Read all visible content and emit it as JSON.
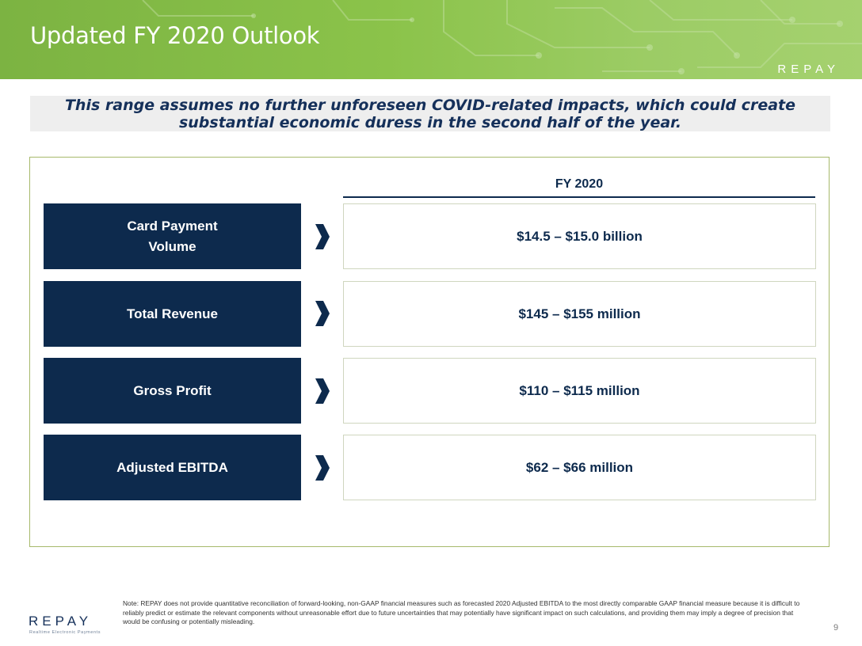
{
  "slide": {
    "title": "Updated FY 2020 Outlook",
    "brand": "REPAY",
    "assumption": "This range assumes no further unforeseen COVID-related impacts, which could create substantial economic duress in the second half of the year."
  },
  "outlook": {
    "column_header": "FY 2020",
    "rows": [
      {
        "metric": "Card Payment Volume",
        "value": "$14.5 – $15.0 billion"
      },
      {
        "metric": "Total Revenue",
        "value": "$145 – $155 million"
      },
      {
        "metric": "Gross Profit",
        "value": "$110 – $115 million"
      },
      {
        "metric": "Adjusted EBITDA",
        "value": "$62 – $66 million"
      }
    ]
  },
  "footer": {
    "note": "Note: REPAY does not provide quantitative reconciliation of forward-looking, non-GAAP financial measures such as forecasted 2020 Adjusted EBITDA to the most directly comparable GAAP financial measure because it is difficult to reliably predict or estimate the relevant components without unreasonable effort due to future uncertainties that may potentially have significant impact on such calculations, and providing them may imply a degree of precision that would be confusing or potentially misleading.",
    "logo_word": "REPAY",
    "logo_tagline": "Realtime Electronic Payments",
    "page_number": "9"
  },
  "colors": {
    "navy": "#0d2a4d",
    "header_green": "#8bc34a",
    "panel_border": "#a7b96b"
  },
  "icons": {
    "arrow": "chevron-right-icon"
  }
}
